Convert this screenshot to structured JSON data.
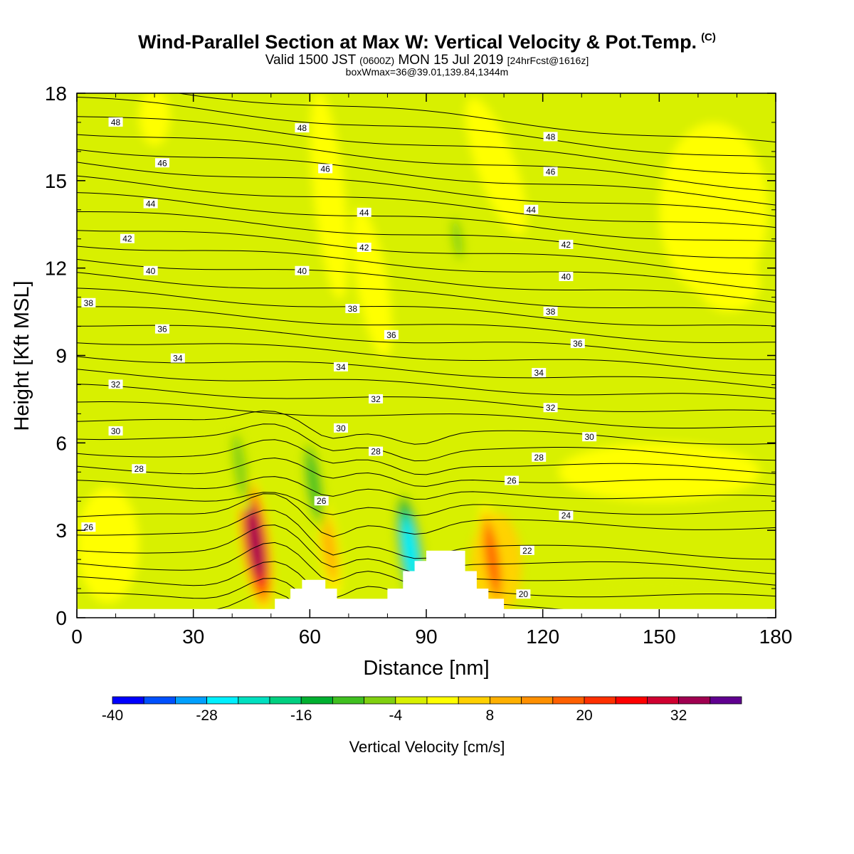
{
  "header": {
    "title": "Wind-Parallel Section at Max W: Vertical Velocity & Pot.Temp.",
    "copyright": "(C)",
    "valid_prefix": "Valid 1500 JST",
    "valid_zulu": "(0600Z)",
    "valid_date": "MON 15 Jul 2019",
    "forecast": "[24hrFcst@1616z]",
    "boxwmax": "boxWmax=36@39.01,139.84,1344m"
  },
  "chart_data": {
    "type": "heatmap",
    "title": "Wind-Parallel Section at Max W: Vertical Velocity & Pot.Temp.",
    "xlabel": "Distance [nm]",
    "ylabel": "Height [Kft MSL]",
    "xlim": [
      0,
      180
    ],
    "ylim": [
      0,
      18
    ],
    "x_ticks": [
      0,
      30,
      60,
      90,
      120,
      150,
      180
    ],
    "y_ticks": [
      0,
      3,
      6,
      9,
      12,
      15,
      18
    ],
    "fill_variable": "Vertical Velocity [cm/s]",
    "contour_variable": "Potential temperature",
    "colorbar": {
      "title": "Vertical Velocity [cm/s]",
      "levels": [
        -40,
        -36,
        -32,
        -28,
        -24,
        -20,
        -16,
        -12,
        -8,
        -4,
        0,
        4,
        8,
        12,
        16,
        20,
        24,
        28,
        32,
        36,
        40
      ],
      "tick_labels": [
        -40,
        -28,
        -16,
        -4,
        8,
        20,
        32
      ],
      "colors": [
        "#0000ff",
        "#0050ff",
        "#00a0ff",
        "#00f0ff",
        "#00e0c0",
        "#00d080",
        "#00b030",
        "#40c020",
        "#80d010",
        "#d8f000",
        "#ffff00",
        "#ffd000",
        "#ffb000",
        "#ff9000",
        "#ff6000",
        "#ff3000",
        "#ff0000",
        "#d00030",
        "#a00050",
        "#600090"
      ]
    },
    "velocity_features": [
      {
        "x": 46,
        "y": 2.6,
        "value": 36,
        "kind": "updraft"
      },
      {
        "x": 107,
        "y": 2.0,
        "value": 20,
        "kind": "updraft"
      },
      {
        "x": 65,
        "y": 2.4,
        "value": 12,
        "kind": "updraft"
      },
      {
        "x": 86,
        "y": 2.2,
        "value": -28,
        "kind": "downdraft"
      },
      {
        "x": 61,
        "y": 4.6,
        "value": -12,
        "kind": "downdraft"
      },
      {
        "x": 42,
        "y": 5.2,
        "value": -8,
        "kind": "downdraft"
      },
      {
        "x": 98,
        "y": 13.0,
        "value": -8,
        "kind": "downdraft"
      }
    ],
    "terrain_profile": [
      {
        "x": 0,
        "h": 0.3
      },
      {
        "x": 51,
        "h": 0.3
      },
      {
        "x": 51,
        "h": 0.65
      },
      {
        "x": 55,
        "h": 0.65
      },
      {
        "x": 55,
        "h": 1.0
      },
      {
        "x": 58,
        "h": 1.0
      },
      {
        "x": 58,
        "h": 1.3
      },
      {
        "x": 64,
        "h": 1.3
      },
      {
        "x": 64,
        "h": 1.0
      },
      {
        "x": 67,
        "h": 1.0
      },
      {
        "x": 67,
        "h": 0.65
      },
      {
        "x": 80,
        "h": 0.65
      },
      {
        "x": 80,
        "h": 1.0
      },
      {
        "x": 84,
        "h": 1.0
      },
      {
        "x": 84,
        "h": 1.6
      },
      {
        "x": 87,
        "h": 1.6
      },
      {
        "x": 87,
        "h": 1.95
      },
      {
        "x": 90,
        "h": 1.95
      },
      {
        "x": 90,
        "h": 2.3
      },
      {
        "x": 100,
        "h": 2.3
      },
      {
        "x": 100,
        "h": 1.6
      },
      {
        "x": 103,
        "h": 1.6
      },
      {
        "x": 103,
        "h": 1.0
      },
      {
        "x": 106,
        "h": 1.0
      },
      {
        "x": 106,
        "h": 0.65
      },
      {
        "x": 110,
        "h": 0.65
      },
      {
        "x": 110,
        "h": 0.3
      },
      {
        "x": 180,
        "h": 0.3
      }
    ],
    "theta_labels": [
      {
        "text": "48",
        "x": 10,
        "y": 17.0
      },
      {
        "text": "48",
        "x": 58,
        "y": 16.8
      },
      {
        "text": "48",
        "x": 122,
        "y": 16.5
      },
      {
        "text": "46",
        "x": 22,
        "y": 15.6
      },
      {
        "text": "46",
        "x": 64,
        "y": 15.4
      },
      {
        "text": "46",
        "x": 122,
        "y": 15.3
      },
      {
        "text": "44",
        "x": 19,
        "y": 14.2
      },
      {
        "text": "44",
        "x": 74,
        "y": 13.9
      },
      {
        "text": "44",
        "x": 117,
        "y": 14.0
      },
      {
        "text": "42",
        "x": 13,
        "y": 13.0
      },
      {
        "text": "42",
        "x": 74,
        "y": 12.7
      },
      {
        "text": "42",
        "x": 126,
        "y": 12.8
      },
      {
        "text": "40",
        "x": 19,
        "y": 11.9
      },
      {
        "text": "40",
        "x": 58,
        "y": 11.9
      },
      {
        "text": "40",
        "x": 126,
        "y": 11.7
      },
      {
        "text": "38",
        "x": 3,
        "y": 10.8
      },
      {
        "text": "38",
        "x": 71,
        "y": 10.6
      },
      {
        "text": "38",
        "x": 122,
        "y": 10.5
      },
      {
        "text": "36",
        "x": 22,
        "y": 9.9
      },
      {
        "text": "36",
        "x": 81,
        "y": 9.7
      },
      {
        "text": "36",
        "x": 129,
        "y": 9.4
      },
      {
        "text": "34",
        "x": 26,
        "y": 8.9
      },
      {
        "text": "34",
        "x": 68,
        "y": 8.6
      },
      {
        "text": "34",
        "x": 119,
        "y": 8.4
      },
      {
        "text": "32",
        "x": 10,
        "y": 8.0
      },
      {
        "text": "32",
        "x": 77,
        "y": 7.5
      },
      {
        "text": "32",
        "x": 122,
        "y": 7.2
      },
      {
        "text": "30",
        "x": 10,
        "y": 6.4
      },
      {
        "text": "30",
        "x": 68,
        "y": 6.5
      },
      {
        "text": "30",
        "x": 132,
        "y": 6.2
      },
      {
        "text": "28",
        "x": 16,
        "y": 5.1
      },
      {
        "text": "28",
        "x": 77,
        "y": 5.7
      },
      {
        "text": "28",
        "x": 119,
        "y": 5.5
      },
      {
        "text": "26",
        "x": 3,
        "y": 3.1
      },
      {
        "text": "26",
        "x": 63,
        "y": 4.0
      },
      {
        "text": "26",
        "x": 112,
        "y": 4.7
      },
      {
        "text": "24",
        "x": 126,
        "y": 3.5
      },
      {
        "text": "22",
        "x": 116,
        "y": 2.3
      },
      {
        "text": "20",
        "x": 115,
        "y": 0.8
      }
    ]
  }
}
